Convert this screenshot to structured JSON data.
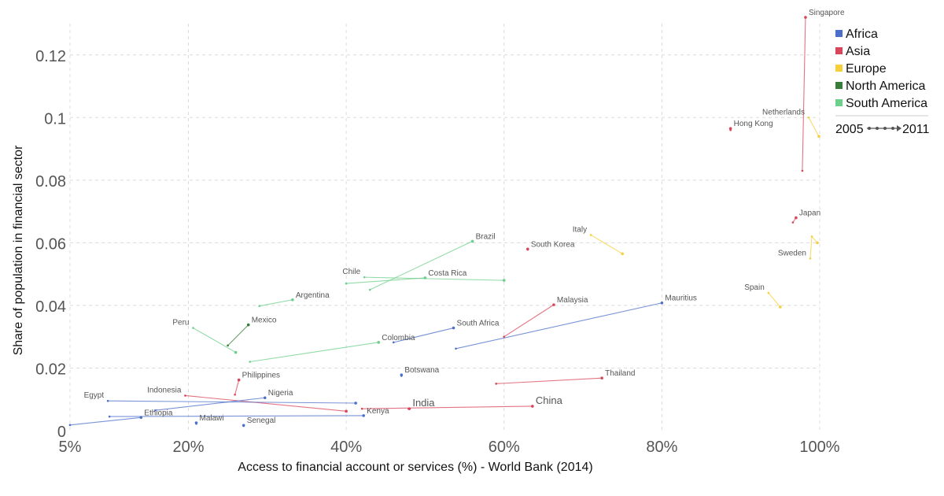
{
  "chart_data": {
    "type": "scatter",
    "subtype": "connected-scatter",
    "xlabel": "Access to financial account or services (%) - World Bank (2014)",
    "ylabel": "Share of population in financial sector",
    "x_ticks": [
      {
        "value": 5,
        "label": "5%"
      },
      {
        "value": 20,
        "label": "20%"
      },
      {
        "value": 40,
        "label": "40%"
      },
      {
        "value": 60,
        "label": "60%"
      },
      {
        "value": 80,
        "label": "80%"
      },
      {
        "value": 100,
        "label": "100%"
      }
    ],
    "y_ticks": [
      {
        "value": 0,
        "label": "0"
      },
      {
        "value": 0.02,
        "label": "0.02"
      },
      {
        "value": 0.04,
        "label": "0.04"
      },
      {
        "value": 0.06,
        "label": "0.06"
      },
      {
        "value": 0.08,
        "label": "0.08"
      },
      {
        "value": 0.1,
        "label": "0.1"
      },
      {
        "value": 0.12,
        "label": "0.12"
      }
    ],
    "xlim": [
      5,
      100
    ],
    "ylim": [
      0,
      0.13
    ],
    "grid": true,
    "legend_position": "right",
    "regions": [
      {
        "name": "Africa",
        "color": "#4c6fc9"
      },
      {
        "name": "Asia",
        "color": "#d9455a"
      },
      {
        "name": "Europe",
        "color": "#f5cf3c"
      },
      {
        "name": "North America",
        "color": "#3a7d3a"
      },
      {
        "name": "South America",
        "color": "#6ccf8a"
      }
    ],
    "time_legend": {
      "start": "2005",
      "end": "2011"
    },
    "series": [
      {
        "name": "Singapore",
        "region": "Asia",
        "points": [
          [
            97.8,
            0.083
          ],
          [
            98.2,
            0.132
          ]
        ],
        "label_at": "end"
      },
      {
        "name": "Netherlands",
        "region": "Europe",
        "points": [
          [
            98.6,
            0.1
          ],
          [
            99.9,
            0.094
          ]
        ],
        "label_at": "start"
      },
      {
        "name": "Hong Kong",
        "region": "Asia",
        "points": [
          [
            88.7,
            0.096
          ],
          [
            88.7,
            0.0965
          ]
        ],
        "label_at": "end"
      },
      {
        "name": "Japan",
        "region": "Asia",
        "points": [
          [
            96.6,
            0.0665
          ],
          [
            97,
            0.068
          ]
        ],
        "label_at": "end"
      },
      {
        "name": "Sweden",
        "region": "Europe",
        "points": [
          [
            98.8,
            0.055
          ],
          [
            99,
            0.062
          ],
          [
            99.7,
            0.06
          ]
        ],
        "label_at": "start"
      },
      {
        "name": "Italy",
        "region": "Europe",
        "points": [
          [
            71,
            0.0625
          ],
          [
            75,
            0.0565
          ]
        ],
        "label_at": "start"
      },
      {
        "name": "Spain",
        "region": "Europe",
        "points": [
          [
            93.5,
            0.044
          ],
          [
            95,
            0.0395
          ]
        ],
        "label_at": "start"
      },
      {
        "name": "Brazil",
        "region": "South America",
        "points": [
          [
            43,
            0.045
          ],
          [
            56,
            0.0605
          ]
        ],
        "label_at": "end"
      },
      {
        "name": "South Korea",
        "region": "Asia",
        "points": [
          [
            63,
            0.0578
          ],
          [
            63,
            0.058
          ]
        ],
        "label_at": "end"
      },
      {
        "name": "Chile",
        "region": "South America",
        "points": [
          [
            42.3,
            0.049
          ],
          [
            60,
            0.048
          ]
        ],
        "label_at": "start"
      },
      {
        "name": "Costa Rica",
        "region": "South America",
        "points": [
          [
            40,
            0.047
          ],
          [
            50,
            0.0488
          ]
        ],
        "label_at": "end"
      },
      {
        "name": "Argentina",
        "region": "South America",
        "points": [
          [
            29,
            0.0398
          ],
          [
            33.2,
            0.0418
          ]
        ],
        "label_at": "end"
      },
      {
        "name": "Mexico",
        "region": "North America",
        "points": [
          [
            25,
            0.0272
          ],
          [
            27.6,
            0.0338
          ]
        ],
        "label_at": "end"
      },
      {
        "name": "Peru",
        "region": "South America",
        "points": [
          [
            20.6,
            0.0328
          ],
          [
            26,
            0.025
          ]
        ],
        "label_at": "start"
      },
      {
        "name": "Malaysia",
        "region": "Asia",
        "points": [
          [
            60,
            0.03
          ],
          [
            66.3,
            0.0402
          ]
        ],
        "label_at": "end"
      },
      {
        "name": "Mauritius",
        "region": "Africa",
        "points": [
          [
            53.9,
            0.0262
          ],
          [
            80,
            0.0408
          ]
        ],
        "label_at": "end"
      },
      {
        "name": "South Africa",
        "region": "Africa",
        "points": [
          [
            46,
            0.0282
          ],
          [
            53.6,
            0.0328
          ]
        ],
        "label_at": "end"
      },
      {
        "name": "Colombia",
        "region": "South America",
        "points": [
          [
            27.8,
            0.022
          ],
          [
            44.1,
            0.0282
          ]
        ],
        "label_at": "end"
      },
      {
        "name": "Botswana",
        "region": "Africa",
        "points": [
          [
            47,
            0.0175
          ],
          [
            47,
            0.0178
          ]
        ],
        "label_at": "end"
      },
      {
        "name": "Thailand",
        "region": "Asia",
        "points": [
          [
            59,
            0.015
          ],
          [
            72.4,
            0.0168
          ]
        ],
        "label_at": "end"
      },
      {
        "name": "Philippines",
        "region": "Asia",
        "points": [
          [
            25.9,
            0.0115
          ],
          [
            26.4,
            0.0162
          ]
        ],
        "label_at": "end"
      },
      {
        "name": "Indonesia",
        "region": "Asia",
        "points": [
          [
            19.6,
            0.0112
          ],
          [
            40,
            0.0062
          ]
        ],
        "label_at": "start"
      },
      {
        "name": "Nigeria",
        "region": "Africa",
        "points": [
          [
            15.8,
            0.0065
          ],
          [
            29.7,
            0.0105
          ]
        ],
        "label_at": "end"
      },
      {
        "name": "Egypt",
        "region": "Africa",
        "points": [
          [
            9.8,
            0.0095
          ],
          [
            41.2,
            0.0088
          ]
        ],
        "label_at": "start"
      },
      {
        "name": "India",
        "region": "Asia",
        "points": [
          [
            47.9,
            0.007
          ],
          [
            48,
            0.007
          ]
        ],
        "label_at": "end"
      },
      {
        "name": "China",
        "region": "Asia",
        "points": [
          [
            42,
            0.007
          ],
          [
            63.6,
            0.0078
          ]
        ],
        "label_at": "end"
      },
      {
        "name": "Kenya",
        "region": "Africa",
        "points": [
          [
            10,
            0.0045
          ],
          [
            42.2,
            0.0048
          ]
        ],
        "label_at": "end"
      },
      {
        "name": "Ethiopia",
        "region": "Africa",
        "points": [
          [
            5,
            0.0018
          ],
          [
            14,
            0.0042
          ]
        ],
        "label_at": "end"
      },
      {
        "name": "Malawi",
        "region": "Africa",
        "points": [
          [
            21,
            0.0022
          ],
          [
            21,
            0.0025
          ]
        ],
        "label_at": "end"
      },
      {
        "name": "Senegal",
        "region": "Africa",
        "points": [
          [
            27,
            0.0015
          ],
          [
            27,
            0.0017
          ]
        ],
        "label_at": "end"
      }
    ]
  }
}
